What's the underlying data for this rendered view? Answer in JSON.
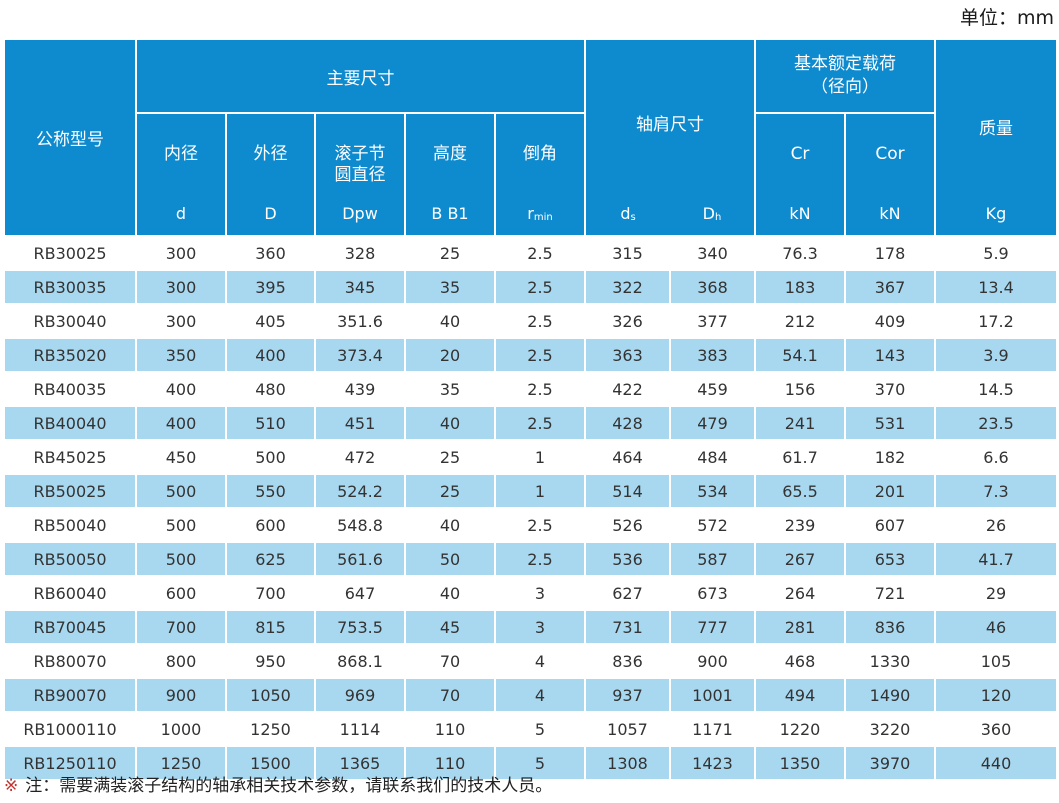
{
  "unit_label": "单位：mm",
  "colors": {
    "header_blue": "#0E8ACE",
    "row_alt_blue": "#A8D8F0",
    "header_text": "#FFFFFF",
    "data_text": "#333333",
    "note_marker_red": "#C5322D"
  },
  "table": {
    "header": {
      "model_label": "公称型号",
      "main_dims_label": "主要尺寸",
      "inner_label": "内径",
      "inner_unit": "d",
      "outer_label": "外径",
      "outer_unit": "D",
      "pitch_label": "滚子节圆直径",
      "pitch_unit": "Dpw",
      "height_label": "高度",
      "height_unit": "B B1",
      "chamfer_label": "倒角",
      "chamfer_unit_main": "r",
      "chamfer_unit_sub": "min",
      "shoulder_label": "轴肩尺寸",
      "shoulder_ds_main": "d",
      "shoulder_ds_sub": "s",
      "shoulder_dh_main": "D",
      "shoulder_dh_sub": "h",
      "load_label_line1": "基本额定载荷",
      "load_label_line2": "（径向）",
      "cr_label": "Cr",
      "cr_unit": "kN",
      "cor_label": "Cor",
      "cor_unit": "kN",
      "mass_label": "质量",
      "mass_unit": "Kg"
    },
    "rows": [
      [
        "RB30025",
        "300",
        "360",
        "328",
        "25",
        "2.5",
        "315",
        "340",
        "76.3",
        "178",
        "5.9"
      ],
      [
        "RB30035",
        "300",
        "395",
        "345",
        "35",
        "2.5",
        "322",
        "368",
        "183",
        "367",
        "13.4"
      ],
      [
        "RB30040",
        "300",
        "405",
        "351.6",
        "40",
        "2.5",
        "326",
        "377",
        "212",
        "409",
        "17.2"
      ],
      [
        "RB35020",
        "350",
        "400",
        "373.4",
        "20",
        "2.5",
        "363",
        "383",
        "54.1",
        "143",
        "3.9"
      ],
      [
        "RB40035",
        "400",
        "480",
        "439",
        "35",
        "2.5",
        "422",
        "459",
        "156",
        "370",
        "14.5"
      ],
      [
        "RB40040",
        "400",
        "510",
        "451",
        "40",
        "2.5",
        "428",
        "479",
        "241",
        "531",
        "23.5"
      ],
      [
        "RB45025",
        "450",
        "500",
        "472",
        "25",
        "1",
        "464",
        "484",
        "61.7",
        "182",
        "6.6"
      ],
      [
        "RB50025",
        "500",
        "550",
        "524.2",
        "25",
        "1",
        "514",
        "534",
        "65.5",
        "201",
        "7.3"
      ],
      [
        "RB50040",
        "500",
        "600",
        "548.8",
        "40",
        "2.5",
        "526",
        "572",
        "239",
        "607",
        "26"
      ],
      [
        "RB50050",
        "500",
        "625",
        "561.6",
        "50",
        "2.5",
        "536",
        "587",
        "267",
        "653",
        "41.7"
      ],
      [
        "RB60040",
        "600",
        "700",
        "647",
        "40",
        "3",
        "627",
        "673",
        "264",
        "721",
        "29"
      ],
      [
        "RB70045",
        "700",
        "815",
        "753.5",
        "45",
        "3",
        "731",
        "777",
        "281",
        "836",
        "46"
      ],
      [
        "RB80070",
        "800",
        "950",
        "868.1",
        "70",
        "4",
        "836",
        "900",
        "468",
        "1330",
        "105"
      ],
      [
        "RB90070",
        "900",
        "1050",
        "969",
        "70",
        "4",
        "937",
        "1001",
        "494",
        "1490",
        "120"
      ],
      [
        "RB1000110",
        "1000",
        "1250",
        "1114",
        "110",
        "5",
        "1057",
        "1171",
        "1220",
        "3220",
        "360"
      ],
      [
        "RB1250110",
        "1250",
        "1500",
        "1365",
        "110",
        "5",
        "1308",
        "1423",
        "1350",
        "3970",
        "440"
      ]
    ]
  },
  "note": {
    "marker": "※",
    "text": "注：需要满装滚子结构的轴承相关技术参数，请联系我们的技术人员。"
  }
}
